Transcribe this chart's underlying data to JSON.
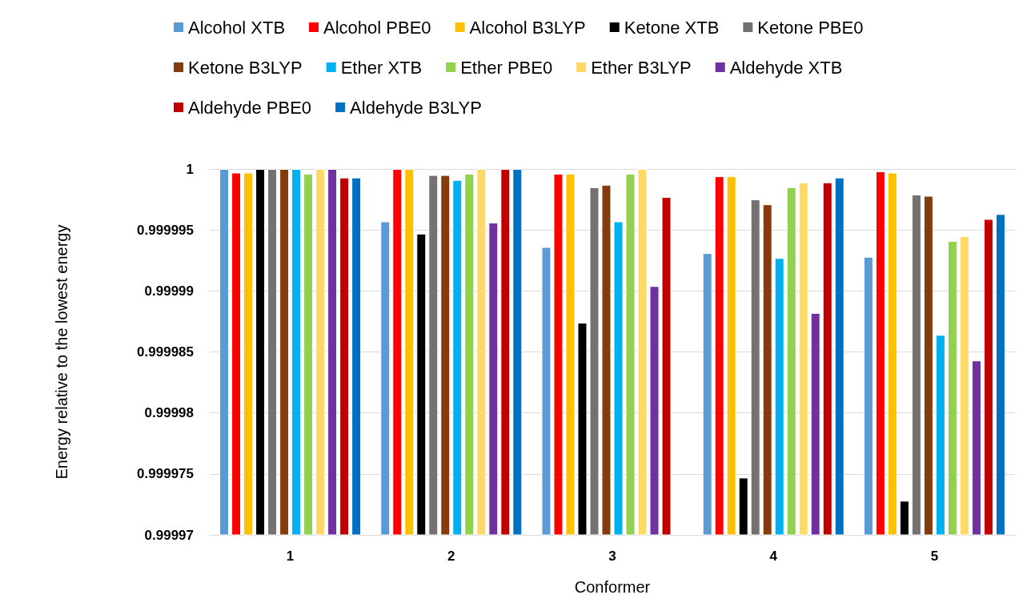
{
  "chart_data": {
    "type": "bar",
    "xlabel": "Conformer",
    "ylabel": "Energy relative to the lowest energy",
    "categories": [
      "1",
      "2",
      "3",
      "4",
      "5"
    ],
    "series": [
      {
        "name": "Alcohol XTB",
        "color": "#5b9bd5",
        "values": [
          1,
          0.9999957,
          0.9999936,
          0.9999931,
          0.9999928
        ]
      },
      {
        "name": "Alcohol PBE0",
        "color": "#ff0000",
        "values": [
          0.9999997,
          1,
          0.9999996,
          0.9999994,
          0.9999998
        ]
      },
      {
        "name": "Alcohol B3LYP",
        "color": "#ffc000",
        "values": [
          0.9999997,
          1,
          0.9999996,
          0.9999994,
          0.9999997
        ]
      },
      {
        "name": "Ketone XTB",
        "color": "#000000",
        "values": [
          1,
          0.9999947,
          0.9999874,
          0.9999747,
          0.9999728
        ]
      },
      {
        "name": "Ketone PBE0",
        "color": "#767171",
        "values": [
          1,
          0.9999995,
          0.9999985,
          0.9999975,
          0.9999979
        ]
      },
      {
        "name": "Ketone B3LYP",
        "color": "#843c0c",
        "values": [
          1,
          0.9999995,
          0.9999987,
          0.9999971,
          0.9999978
        ]
      },
      {
        "name": "Ether XTB",
        "color": "#00b0f0",
        "values": [
          1,
          0.9999991,
          0.9999957,
          0.9999927,
          0.9999864
        ]
      },
      {
        "name": "Ether PBE0",
        "color": "#92d050",
        "values": [
          0.9999996,
          0.9999996,
          0.9999996,
          0.9999985,
          0.9999941
        ]
      },
      {
        "name": "Ether B3LYP",
        "color": "#ffd966",
        "values": [
          1,
          1,
          1,
          0.9999989,
          0.9999945
        ]
      },
      {
        "name": "Aldehyde XTB",
        "color": "#7030a0",
        "values": [
          1,
          0.9999956,
          0.9999904,
          0.9999882,
          0.9999843
        ]
      },
      {
        "name": "Aldehyde PBE0",
        "color": "#c00000",
        "values": [
          0.9999993,
          1,
          0.9999977,
          0.9999989,
          0.9999959
        ]
      },
      {
        "name": "Aldehyde B3LYP",
        "color": "#0070c0",
        "values": [
          0.9999993,
          1,
          0.99997,
          0.9999993,
          0.9999963
        ]
      }
    ],
    "ylim": [
      0.99997,
      1
    ],
    "yticks": [
      0.99997,
      0.999975,
      0.99998,
      0.999985,
      0.99999,
      0.999995,
      1
    ],
    "grid": "y",
    "legend": "top"
  }
}
